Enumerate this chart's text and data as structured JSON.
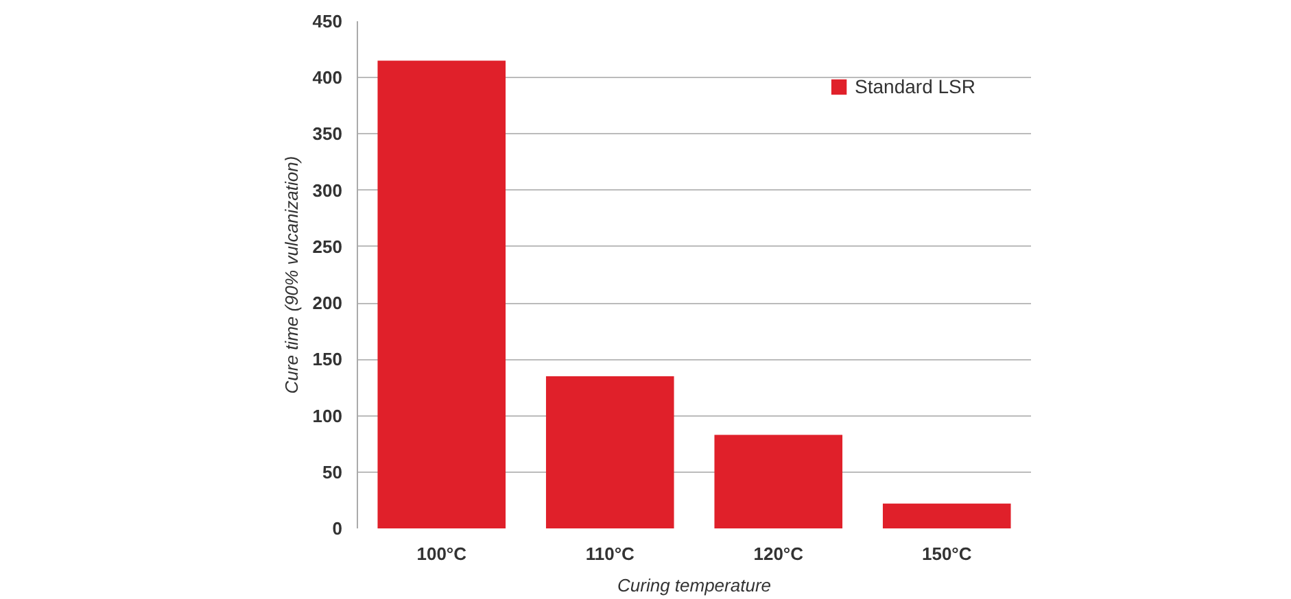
{
  "chart_data": {
    "type": "bar",
    "xlabel": "Curing temperature",
    "ylabel": "Cure time (90% vulcanization)",
    "categories": [
      "100°C",
      "110°C",
      "120°C",
      "150°C"
    ],
    "series": [
      {
        "name": "Standard LSR",
        "color": "#e0202a",
        "values": [
          415,
          135,
          83,
          22
        ]
      }
    ],
    "ylim": [
      0,
      450
    ],
    "yticks": [
      0,
      50,
      100,
      150,
      200,
      250,
      300,
      350,
      400,
      450
    ],
    "grid": "y",
    "legend": "top right"
  }
}
